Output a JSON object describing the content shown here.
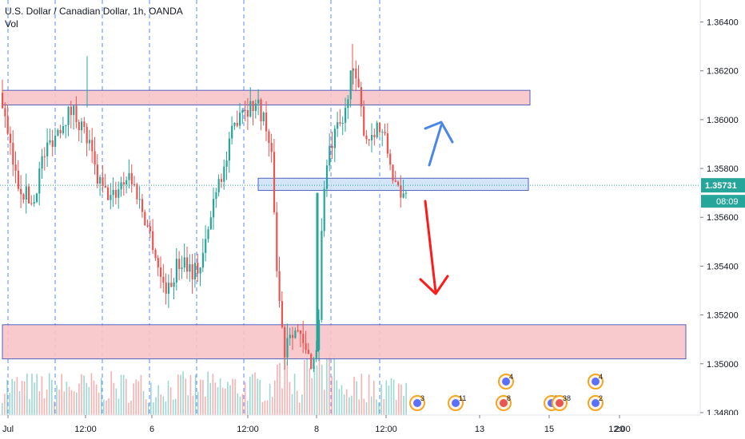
{
  "chart_data": {
    "type": "candlestick",
    "symbol_title": "U.S. Dollar / Canadian Dollar, 1h, OANDA",
    "volume_label": "Vol",
    "ylim": [
      1.3479,
      1.3649
    ],
    "y_ticks": [
      "1.36400",
      "1.36200",
      "1.36000",
      "1.35800",
      "1.35600",
      "1.35400",
      "1.35200",
      "1.35000",
      "1.34800"
    ],
    "x_ticks": [
      "Jul",
      "12:00",
      "6",
      "12:00",
      "8",
      "12:00",
      "13",
      "15",
      "12:00",
      "20"
    ],
    "last_price": "1.35731",
    "countdown": "08:09",
    "colors": {
      "up": "#26a69a",
      "down": "#ef5350",
      "zone_fill": "#f8c5c8",
      "zone_stroke": "#3f51b5",
      "zone_blue_fill": "#cfe3f7",
      "arrow_up": "#4a86e8",
      "arrow_down": "#ff1a1a",
      "price_line": "#26a69a"
    },
    "zones": [
      {
        "name": "resistance-zone",
        "from": 1.3606,
        "to": 1.3612,
        "color": "red"
      },
      {
        "name": "pivot-zone",
        "from": 1.3571,
        "to": 1.3576,
        "color": "blue"
      },
      {
        "name": "support-zone",
        "from": 1.3502,
        "to": 1.3516,
        "color": "red"
      }
    ],
    "event_badges": [
      "3",
      "11",
      "8",
      "5",
      "2",
      "38",
      "4",
      "4"
    ],
    "trend_up": "up-arrow",
    "trend_down": "down-arrow"
  }
}
